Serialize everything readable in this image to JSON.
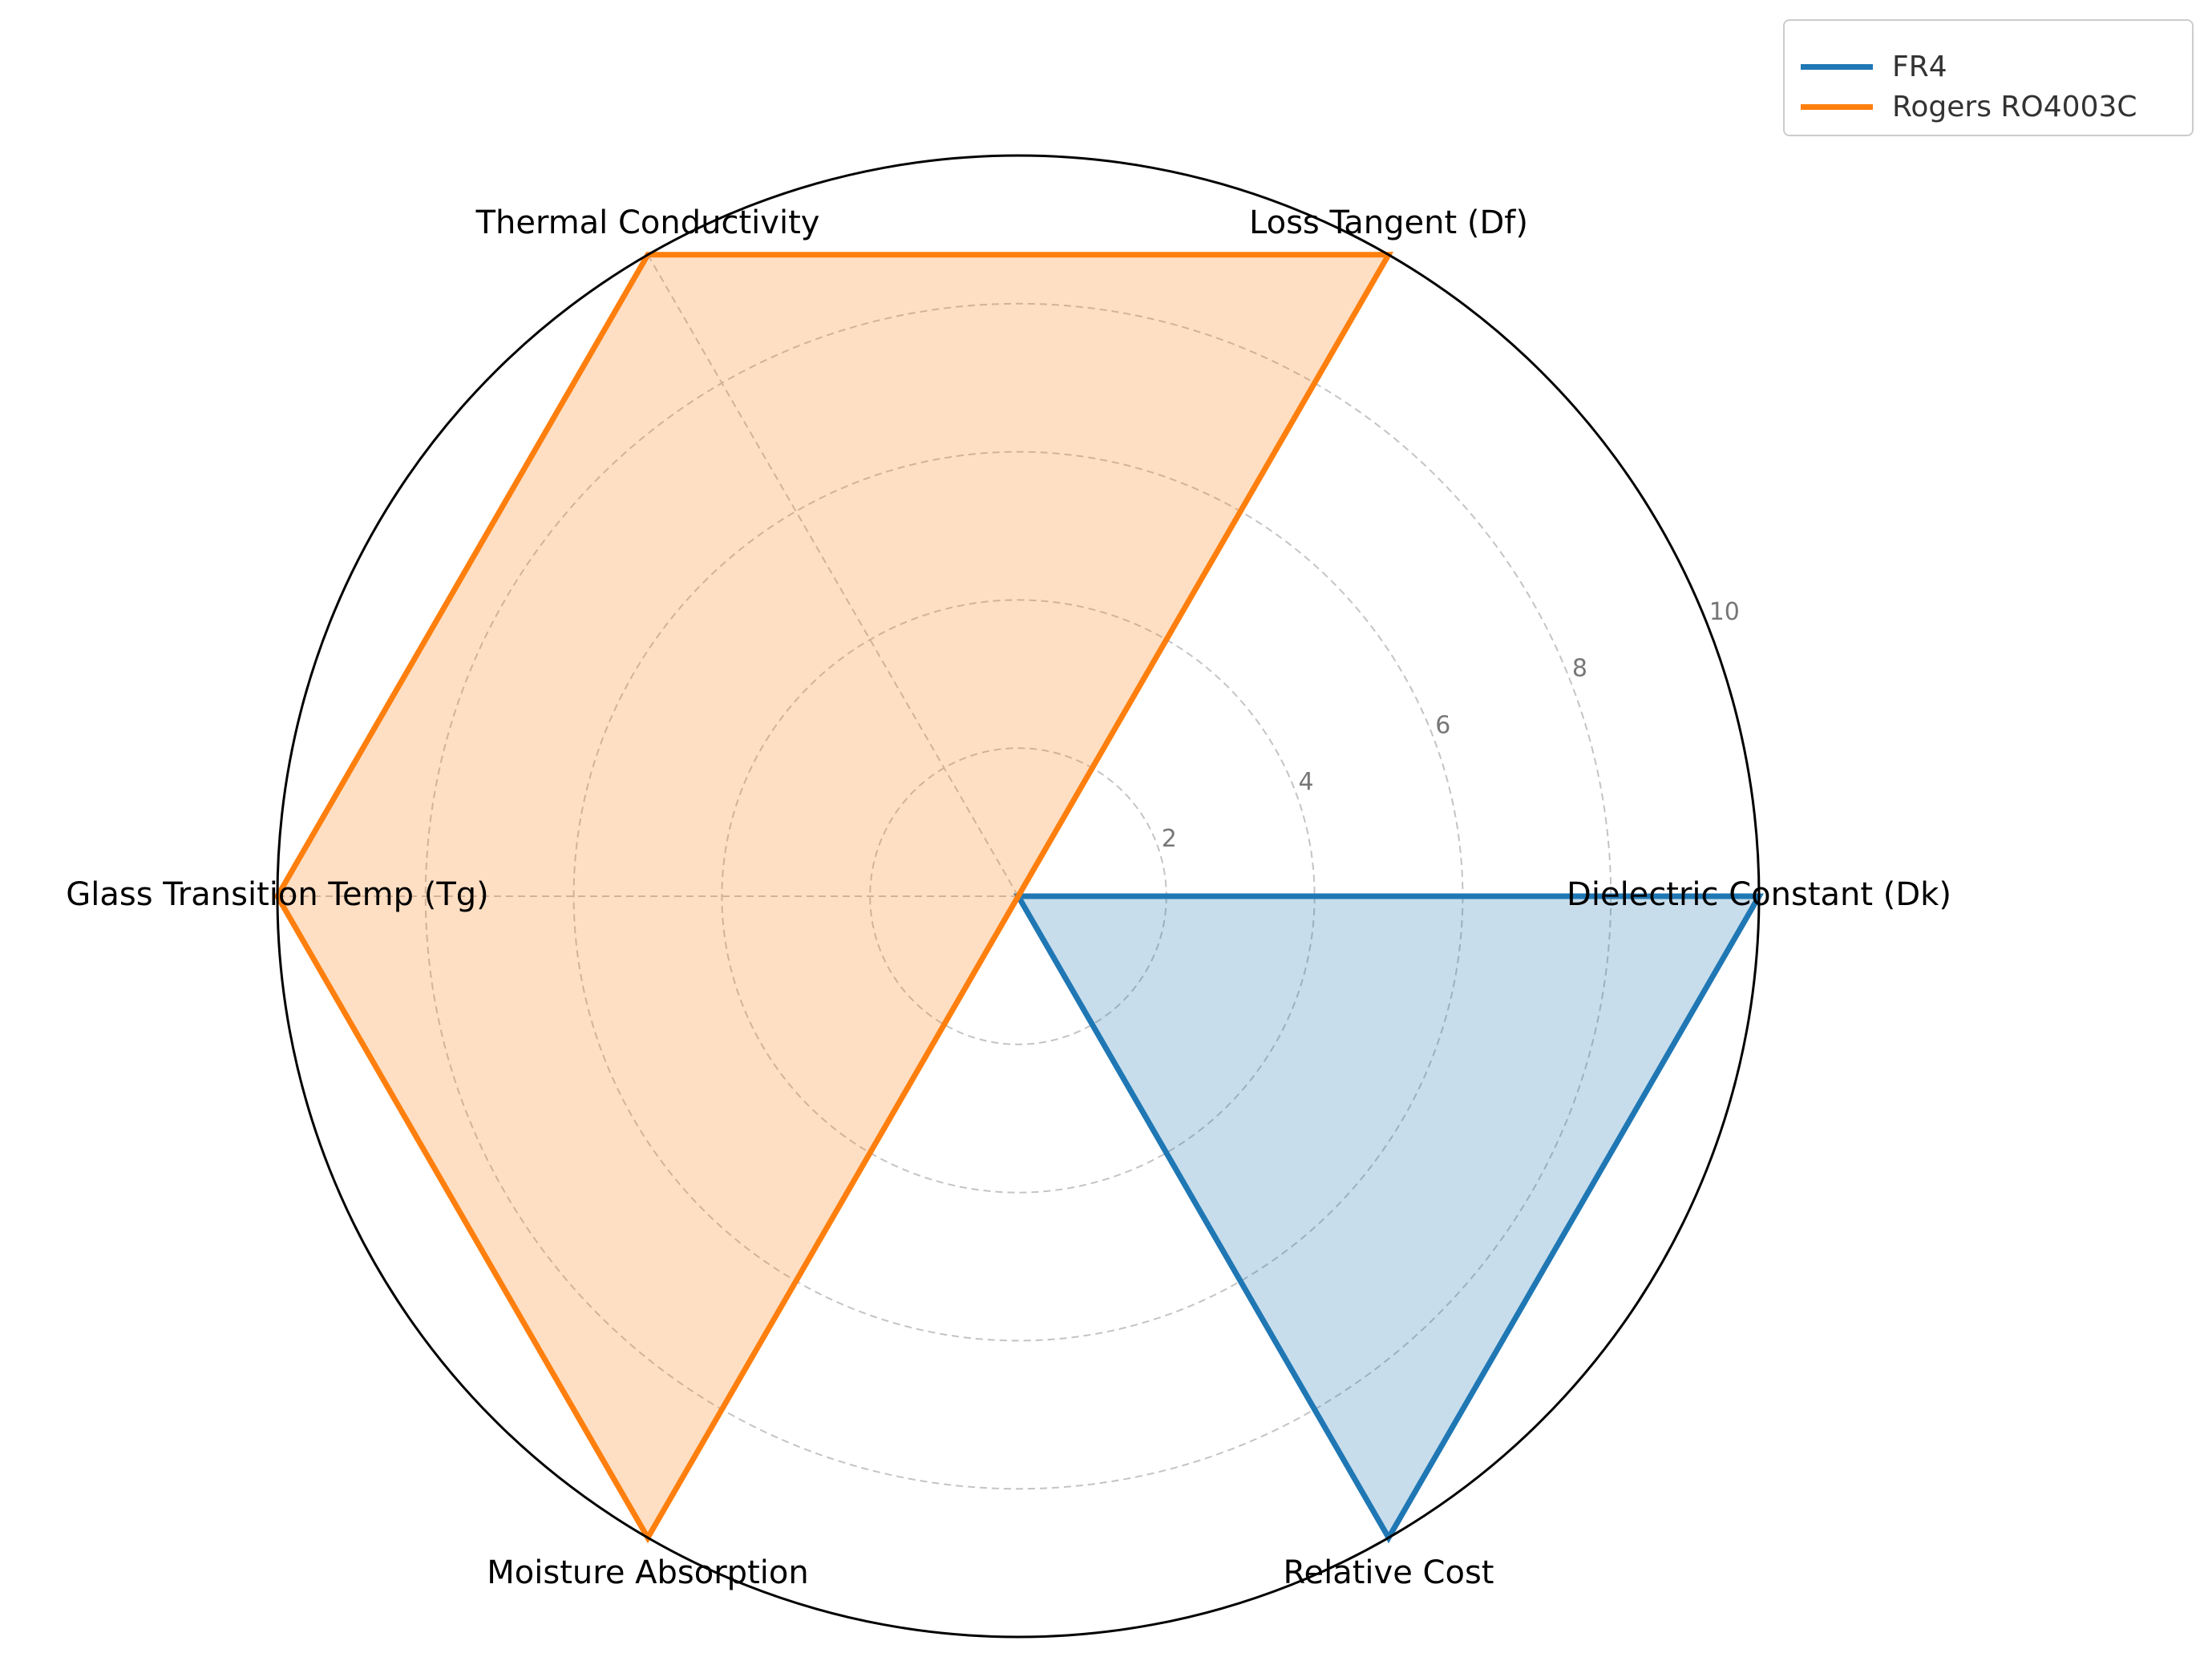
{
  "chart_data": {
    "type": "radar",
    "title": "",
    "categories": [
      "Dielectric Constant (Dk)",
      "Loss Tangent (Df)",
      "Thermal Conductivity",
      "Glass Transition Temp (Tg)",
      "Moisture Absorption",
      "Relative Cost"
    ],
    "series": [
      {
        "name": "FR4",
        "color": "#1f77b4",
        "values": [
          10,
          0,
          0,
          0,
          0,
          10
        ]
      },
      {
        "name": "Rogers RO4003C",
        "color": "#ff7f0e",
        "values": [
          0,
          10,
          10,
          10,
          10,
          0
        ]
      }
    ],
    "rlim": [
      0,
      10
    ],
    "rticks": [
      "2",
      "4",
      "6",
      "8",
      "10"
    ],
    "grid": true,
    "legend_position": "top-right"
  }
}
